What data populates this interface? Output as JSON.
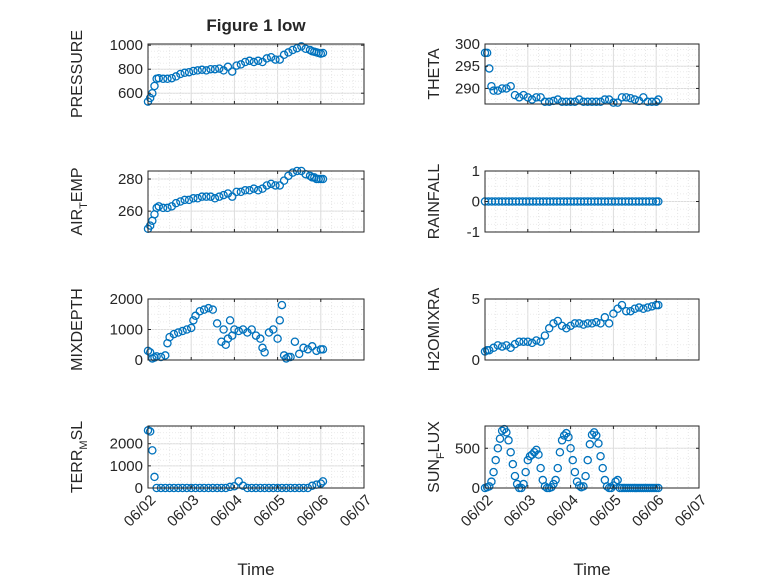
{
  "figure_title": "Figure 1 low",
  "xlabel": "Time",
  "chart_data": [
    {
      "type": "scatter",
      "ylabel": "PRESSURE",
      "title": "Figure 1 low",
      "yticks": [
        600,
        800,
        1000
      ],
      "ytick_labels": [
        "600",
        "800",
        "1000"
      ],
      "ylim": [
        510,
        1010
      ],
      "xtick_labels": [],
      "xlim": [
        0,
        5
      ],
      "x": [
        0.0,
        0.05,
        0.1,
        0.15,
        0.2,
        0.25,
        0.35,
        0.45,
        0.55,
        0.65,
        0.75,
        0.85,
        0.95,
        1.05,
        1.15,
        1.25,
        1.35,
        1.45,
        1.55,
        1.65,
        1.75,
        1.85,
        1.95,
        2.05,
        2.15,
        2.25,
        2.35,
        2.45,
        2.55,
        2.65,
        2.75,
        2.85,
        2.95,
        3.05,
        3.15,
        3.25,
        3.35,
        3.45,
        3.55,
        3.65,
        3.75,
        3.8,
        3.85,
        3.9,
        3.95,
        4.0,
        4.05
      ],
      "y": [
        530,
        560,
        600,
        660,
        720,
        725,
        720,
        720,
        725,
        740,
        760,
        770,
        775,
        785,
        790,
        795,
        790,
        800,
        800,
        805,
        790,
        820,
        780,
        830,
        840,
        860,
        870,
        860,
        870,
        860,
        890,
        900,
        880,
        880,
        920,
        940,
        960,
        975,
        990,
        970,
        960,
        950,
        945,
        940,
        935,
        930,
        935
      ]
    },
    {
      "type": "scatter",
      "ylabel": "THETA",
      "yticks": [
        290,
        295,
        300
      ],
      "ytick_labels": [
        "290",
        "295",
        "300"
      ],
      "ylim": [
        286.5,
        300
      ],
      "xtick_labels": [],
      "xlim": [
        0,
        5
      ],
      "x": [
        0.0,
        0.05,
        0.1,
        0.15,
        0.2,
        0.3,
        0.4,
        0.5,
        0.6,
        0.7,
        0.8,
        0.9,
        1.0,
        1.1,
        1.2,
        1.3,
        1.4,
        1.5,
        1.6,
        1.7,
        1.8,
        1.9,
        2.0,
        2.1,
        2.2,
        2.3,
        2.4,
        2.5,
        2.6,
        2.7,
        2.8,
        2.9,
        3.0,
        3.1,
        3.2,
        3.3,
        3.4,
        3.5,
        3.6,
        3.7,
        3.8,
        3.9,
        4.0,
        4.05
      ],
      "y": [
        298,
        298,
        294.5,
        290.5,
        289.5,
        289.5,
        290,
        290,
        290.5,
        288.5,
        288,
        288.5,
        288,
        287.5,
        288,
        288,
        287,
        287,
        287.2,
        287.5,
        287,
        287,
        287,
        287,
        287.5,
        287,
        287,
        287,
        287,
        287,
        287.5,
        287.5,
        286.8,
        286.8,
        288,
        288,
        287.8,
        287.5,
        287.2,
        288,
        287,
        287,
        287,
        287.5
      ]
    },
    {
      "type": "scatter",
      "ylabel": "AIR_TEMP",
      "yticks": [
        260,
        280
      ],
      "ytick_labels": [
        "260",
        "280"
      ],
      "ylim": [
        247,
        285
      ],
      "xtick_labels": [],
      "xlim": [
        0,
        5
      ],
      "x": [
        0.0,
        0.05,
        0.1,
        0.15,
        0.2,
        0.25,
        0.35,
        0.45,
        0.55,
        0.65,
        0.75,
        0.85,
        0.95,
        1.05,
        1.15,
        1.25,
        1.35,
        1.45,
        1.55,
        1.65,
        1.75,
        1.85,
        1.95,
        2.05,
        2.15,
        2.25,
        2.35,
        2.45,
        2.55,
        2.65,
        2.75,
        2.85,
        2.95,
        3.05,
        3.15,
        3.25,
        3.35,
        3.45,
        3.55,
        3.65,
        3.75,
        3.8,
        3.85,
        3.9,
        3.95,
        4.0,
        4.05
      ],
      "y": [
        249,
        251,
        254,
        258,
        262,
        263,
        262,
        262,
        263,
        265,
        266,
        267,
        267,
        268,
        268,
        269,
        269,
        269,
        268,
        269,
        270,
        271,
        269,
        272,
        272,
        273,
        273,
        274,
        273,
        274,
        276,
        277,
        276,
        276,
        279,
        282,
        284,
        285,
        285,
        283,
        282,
        281,
        281,
        280,
        280,
        280,
        280
      ]
    },
    {
      "type": "scatter",
      "ylabel": "RAINFALL",
      "yticks": [
        -1,
        0,
        1
      ],
      "ytick_labels": [
        "-1",
        "0",
        "1"
      ],
      "ylim": [
        -1,
        1
      ],
      "xtick_labels": [],
      "xlim": [
        0,
        5
      ],
      "x": [
        0.0,
        0.08,
        0.16,
        0.24,
        0.32,
        0.4,
        0.48,
        0.56,
        0.64,
        0.72,
        0.8,
        0.88,
        0.96,
        1.04,
        1.12,
        1.2,
        1.28,
        1.36,
        1.44,
        1.52,
        1.6,
        1.68,
        1.76,
        1.84,
        1.92,
        2.0,
        2.08,
        2.16,
        2.24,
        2.32,
        2.4,
        2.48,
        2.56,
        2.64,
        2.72,
        2.8,
        2.88,
        2.96,
        3.04,
        3.12,
        3.2,
        3.28,
        3.36,
        3.44,
        3.52,
        3.6,
        3.68,
        3.76,
        3.84,
        3.92,
        4.0,
        4.05
      ],
      "y": [
        0,
        0,
        0,
        0,
        0,
        0,
        0,
        0,
        0,
        0,
        0,
        0,
        0,
        0,
        0,
        0,
        0,
        0,
        0,
        0,
        0,
        0,
        0,
        0,
        0,
        0,
        0,
        0,
        0,
        0,
        0,
        0,
        0,
        0,
        0,
        0,
        0,
        0,
        0,
        0,
        0,
        0,
        0,
        0,
        0,
        0,
        0,
        0,
        0,
        0,
        0,
        0
      ]
    },
    {
      "type": "scatter",
      "ylabel": "MIXDEPTH",
      "yticks": [
        0,
        1000,
        2000
      ],
      "ytick_labels": [
        "0",
        "1000",
        "2000"
      ],
      "ylim": [
        0,
        2000
      ],
      "xtick_labels": [],
      "xlim": [
        0,
        5
      ],
      "x": [
        0.0,
        0.05,
        0.1,
        0.15,
        0.2,
        0.3,
        0.4,
        0.45,
        0.5,
        0.6,
        0.7,
        0.8,
        0.9,
        1.0,
        1.05,
        1.1,
        1.2,
        1.3,
        1.4,
        1.5,
        1.6,
        1.7,
        1.75,
        1.8,
        1.85,
        1.9,
        1.95,
        2.0,
        2.1,
        2.2,
        2.3,
        2.4,
        2.5,
        2.6,
        2.65,
        2.7,
        2.8,
        2.9,
        3.0,
        3.05,
        3.1,
        3.15,
        3.2,
        3.25,
        3.3,
        3.4,
        3.5,
        3.6,
        3.7,
        3.8,
        3.9,
        4.0,
        4.05
      ],
      "y": [
        300,
        250,
        50,
        80,
        120,
        100,
        150,
        550,
        750,
        850,
        900,
        950,
        1000,
        1050,
        1300,
        1450,
        1600,
        1650,
        1700,
        1650,
        1200,
        600,
        1000,
        500,
        700,
        1300,
        800,
        1000,
        950,
        1000,
        900,
        1000,
        800,
        700,
        400,
        250,
        900,
        1000,
        700,
        1300,
        1800,
        150,
        50,
        100,
        100,
        600,
        200,
        400,
        350,
        450,
        300,
        350,
        350
      ]
    },
    {
      "type": "scatter",
      "ylabel": "H2OMIXRA",
      "yticks": [
        0,
        5
      ],
      "ytick_labels": [
        "0",
        "5"
      ],
      "ylim": [
        0,
        5
      ],
      "xtick_labels": [],
      "xlim": [
        0,
        5
      ],
      "x": [
        0.0,
        0.05,
        0.1,
        0.2,
        0.3,
        0.4,
        0.5,
        0.6,
        0.7,
        0.8,
        0.9,
        1.0,
        1.1,
        1.2,
        1.3,
        1.4,
        1.5,
        1.6,
        1.7,
        1.8,
        1.9,
        2.0,
        2.1,
        2.2,
        2.3,
        2.4,
        2.5,
        2.6,
        2.7,
        2.8,
        2.9,
        3.0,
        3.1,
        3.2,
        3.3,
        3.4,
        3.5,
        3.6,
        3.7,
        3.8,
        3.9,
        4.0,
        4.05
      ],
      "y": [
        0.7,
        0.8,
        0.8,
        1.0,
        1.2,
        1.1,
        1.2,
        1.0,
        1.3,
        1.5,
        1.5,
        1.5,
        1.4,
        1.6,
        1.5,
        2.0,
        2.6,
        3.0,
        3.2,
        2.8,
        2.6,
        2.8,
        3.0,
        3.0,
        2.9,
        3.0,
        3.0,
        3.1,
        3.0,
        3.5,
        3.0,
        3.8,
        4.2,
        4.5,
        4.0,
        4.0,
        4.2,
        4.3,
        4.2,
        4.3,
        4.4,
        4.5,
        4.5
      ]
    },
    {
      "type": "scatter",
      "ylabel": "TERR_MSL",
      "yticks": [
        0,
        1000,
        2000
      ],
      "ytick_labels": [
        "0",
        "1000",
        "2000"
      ],
      "ylim": [
        0,
        2800
      ],
      "xtick_labels": [
        "06/02",
        "06/03",
        "06/04",
        "06/05",
        "06/06",
        "06/07"
      ],
      "xlim": [
        0,
        5
      ],
      "x": [
        0.0,
        0.05,
        0.1,
        0.15,
        0.2,
        0.3,
        0.4,
        0.5,
        0.6,
        0.7,
        0.8,
        0.9,
        1.0,
        1.1,
        1.2,
        1.3,
        1.4,
        1.5,
        1.6,
        1.7,
        1.8,
        1.9,
        2.0,
        2.1,
        2.2,
        2.3,
        2.4,
        2.5,
        2.6,
        2.7,
        2.8,
        2.9,
        3.0,
        3.1,
        3.2,
        3.3,
        3.4,
        3.5,
        3.6,
        3.7,
        3.8,
        3.9,
        4.0,
        4.05
      ],
      "y": [
        2600,
        2550,
        1700,
        500,
        0,
        0,
        0,
        0,
        0,
        0,
        0,
        0,
        0,
        0,
        0,
        0,
        0,
        0,
        0,
        0,
        0,
        50,
        80,
        300,
        100,
        0,
        0,
        0,
        0,
        0,
        0,
        0,
        0,
        0,
        0,
        0,
        0,
        0,
        0,
        0,
        100,
        150,
        200,
        300
      ]
    },
    {
      "type": "scatter",
      "ylabel": "SUN_FLUX",
      "yticks": [
        0,
        500
      ],
      "ytick_labels": [
        "0",
        "500"
      ],
      "ylim": [
        0,
        780
      ],
      "xtick_labels": [
        "06/02",
        "06/03",
        "06/04",
        "06/05",
        "06/06",
        "06/07"
      ],
      "xlim": [
        0,
        5
      ],
      "x": [
        0.0,
        0.05,
        0.1,
        0.15,
        0.2,
        0.25,
        0.3,
        0.35,
        0.4,
        0.45,
        0.5,
        0.55,
        0.6,
        0.65,
        0.7,
        0.75,
        0.8,
        0.85,
        0.9,
        0.95,
        1.0,
        1.05,
        1.1,
        1.15,
        1.2,
        1.25,
        1.3,
        1.35,
        1.4,
        1.45,
        1.5,
        1.55,
        1.6,
        1.65,
        1.7,
        1.75,
        1.8,
        1.85,
        1.9,
        1.95,
        2.0,
        2.05,
        2.1,
        2.15,
        2.2,
        2.25,
        2.3,
        2.35,
        2.4,
        2.45,
        2.5,
        2.55,
        2.6,
        2.65,
        2.7,
        2.75,
        2.8,
        2.85,
        2.9,
        2.95,
        3.0,
        3.05,
        3.1,
        3.15,
        3.2,
        3.25,
        3.3,
        3.35,
        3.4,
        3.45,
        3.5,
        3.55,
        3.6,
        3.65,
        3.7,
        3.75,
        3.8,
        3.85,
        3.9,
        3.95,
        4.0,
        4.05
      ],
      "y": [
        0,
        10,
        20,
        80,
        200,
        350,
        500,
        620,
        720,
        740,
        700,
        600,
        450,
        300,
        150,
        50,
        0,
        0,
        50,
        200,
        350,
        400,
        420,
        450,
        480,
        420,
        250,
        100,
        20,
        0,
        0,
        10,
        50,
        100,
        250,
        450,
        600,
        660,
        690,
        640,
        500,
        350,
        200,
        80,
        30,
        10,
        20,
        150,
        350,
        550,
        670,
        700,
        660,
        560,
        400,
        250,
        100,
        20,
        0,
        0,
        30,
        80,
        100,
        0,
        0,
        0,
        0,
        0,
        0,
        0,
        0,
        0,
        0,
        0,
        0,
        0,
        0,
        0,
        0,
        0,
        0,
        0
      ]
    }
  ]
}
